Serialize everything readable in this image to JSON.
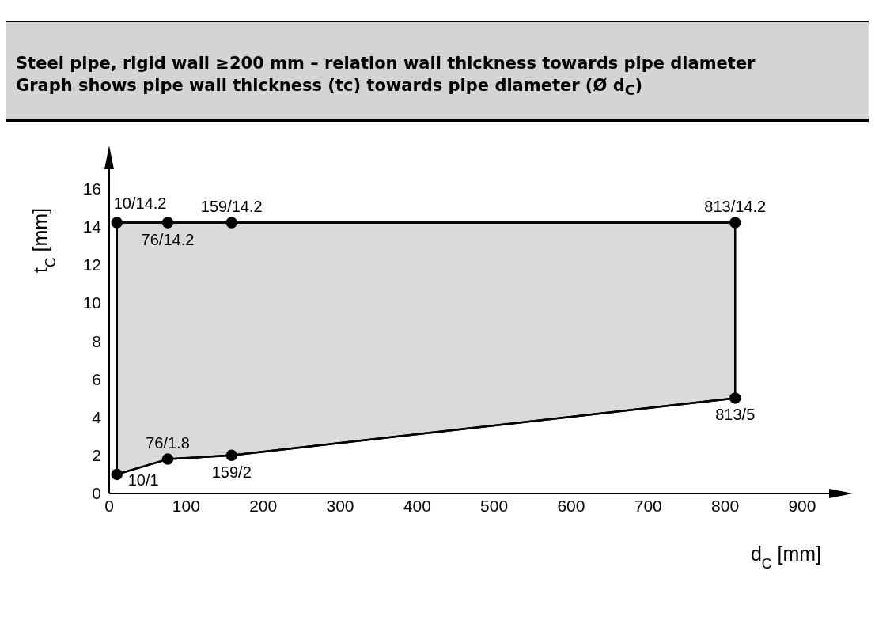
{
  "chart_data": {
    "type": "line",
    "title": "Steel pipe, rigid wall ≥200 mm – relation wall thickness towards pipe diameter",
    "subtitle": "Graph shows pipe wall thickness (tc) towards pipe diameter (Ø d$_{C}$)",
    "xlabel": "d$_{C}$ [mm]",
    "ylabel": "t$_{C}$ [mm]",
    "xlim": [
      0,
      935
    ],
    "xticks": [
      0,
      100,
      200,
      300,
      400,
      500,
      600,
      700,
      800,
      900
    ],
    "ylim": [
      0,
      17
    ],
    "yticks": [
      0,
      2,
      4,
      6,
      8,
      10,
      12,
      14,
      16
    ],
    "grid": false,
    "legend": false,
    "marker": "circle",
    "line_style": "solid",
    "series": [
      {
        "color": "#000000",
        "x": [
          10,
          76,
          159,
          813
        ],
        "values": [
          1,
          1.8,
          2,
          5
        ],
        "value_labels": [
          "10/1",
          "76/1.8",
          "159/2",
          "813/5"
        ]
      },
      {
        "color": "#000000",
        "x": [
          10,
          76,
          159,
          813
        ],
        "values": [
          14.2,
          14.2,
          14.2,
          14.2
        ],
        "lower": [
          1,
          1.8,
          2,
          5
        ],
        "upper": [
          14.2,
          14.2,
          14.2,
          14.2
        ],
        "value_labels": [
          "10/14.2",
          "76/14.2",
          "159/14.2",
          "813/14.2"
        ]
      }
    ]
  }
}
